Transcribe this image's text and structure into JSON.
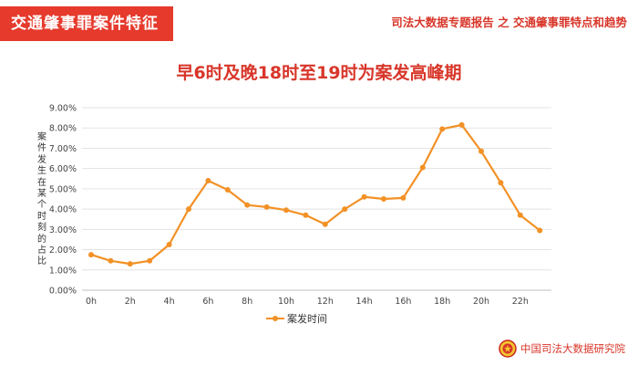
{
  "header": {
    "section_title": "交通肇事罪案件特征",
    "report_title": "司法大数据专题报告 之 交通肇事罪特点和趋势"
  },
  "footer": {
    "brand": "中国司法大数据研究院"
  },
  "colors": {
    "accent": "#e53a2c",
    "line": "#f29126"
  },
  "chart_data": {
    "type": "line",
    "title": "早6时及晚18时至19时为案发高峰期",
    "xlabel": "",
    "ylabel": "案件发生在某个时刻的占比",
    "x": [
      "0h",
      "1h",
      "2h",
      "3h",
      "4h",
      "5h",
      "6h",
      "7h",
      "8h",
      "9h",
      "10h",
      "11h",
      "12h",
      "13h",
      "14h",
      "15h",
      "16h",
      "17h",
      "18h",
      "19h",
      "20h",
      "21h",
      "22h",
      "23h"
    ],
    "x_tick_labels": [
      "0h",
      "2h",
      "4h",
      "6h",
      "8h",
      "10h",
      "12h",
      "14h",
      "16h",
      "18h",
      "20h",
      "22h"
    ],
    "y_tick_labels": [
      "0.00%",
      "1.00%",
      "2.00%",
      "3.00%",
      "4.00%",
      "5.00%",
      "6.00%",
      "7.00%",
      "8.00%",
      "9.00%"
    ],
    "ylim": [
      0,
      9
    ],
    "y_unit": "%",
    "grid": true,
    "legend_position": "bottom",
    "series": [
      {
        "name": "案发时间",
        "values": [
          1.75,
          1.45,
          1.3,
          1.45,
          2.25,
          4.0,
          5.4,
          4.95,
          4.2,
          4.1,
          3.95,
          3.7,
          3.25,
          4.0,
          4.6,
          4.5,
          4.55,
          6.05,
          7.95,
          8.15,
          6.85,
          5.3,
          3.7,
          2.95
        ]
      }
    ]
  }
}
